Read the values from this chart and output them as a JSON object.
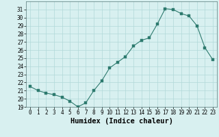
{
  "xlabel": "Humidex (Indice chaleur)",
  "x": [
    0,
    1,
    2,
    3,
    4,
    5,
    6,
    7,
    8,
    9,
    10,
    11,
    12,
    13,
    14,
    15,
    16,
    17,
    18,
    19,
    20,
    21,
    22,
    23
  ],
  "y": [
    21.5,
    21.0,
    20.7,
    20.5,
    20.2,
    19.7,
    19.0,
    19.5,
    21.0,
    22.2,
    23.8,
    24.5,
    25.2,
    26.5,
    27.2,
    27.5,
    29.2,
    31.1,
    31.0,
    30.5,
    30.2,
    29.0,
    26.3,
    24.8
  ],
  "line_color": "#2d7a6e",
  "marker": "s",
  "marker_size": 2.5,
  "bg_color": "#d8f0f0",
  "grid_color": "#b0d8d8",
  "ylim": [
    19,
    32
  ],
  "xlim": [
    -0.5,
    23.5
  ],
  "yticks": [
    19,
    20,
    21,
    22,
    23,
    24,
    25,
    26,
    27,
    28,
    29,
    30,
    31
  ],
  "xticks": [
    0,
    1,
    2,
    3,
    4,
    5,
    6,
    7,
    8,
    9,
    10,
    11,
    12,
    13,
    14,
    15,
    16,
    17,
    18,
    19,
    20,
    21,
    22,
    23
  ],
  "tick_fontsize": 5.5,
  "xlabel_fontsize": 7.5
}
